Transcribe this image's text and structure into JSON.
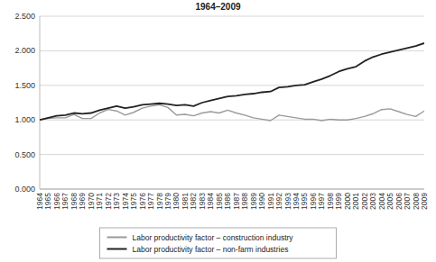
{
  "chart_data": {
    "type": "line",
    "title": "1964–2009",
    "categories": [
      "1964",
      "1965",
      "1966",
      "1967",
      "1968",
      "1969",
      "1970",
      "1971",
      "1972",
      "1973",
      "1974",
      "1975",
      "1976",
      "1977",
      "1978",
      "1979",
      "1980",
      "1981",
      "1982",
      "1983",
      "1984",
      "1985",
      "1986",
      "1987",
      "1988",
      "1989",
      "1990",
      "1991",
      "1992",
      "1993",
      "1994",
      "1995",
      "1996",
      "1997",
      "1998",
      "1999",
      "2000",
      "2001",
      "2002",
      "2003",
      "2004",
      "2005",
      "2006",
      "2007",
      "2008",
      "2009"
    ],
    "series": [
      {
        "name": "Labor productivity factor – construction industry",
        "color": "#9a9a9a",
        "values": [
          1.0,
          1.02,
          1.03,
          1.03,
          1.08,
          1.02,
          1.02,
          1.1,
          1.15,
          1.13,
          1.07,
          1.11,
          1.17,
          1.2,
          1.22,
          1.18,
          1.07,
          1.08,
          1.06,
          1.1,
          1.12,
          1.1,
          1.14,
          1.1,
          1.07,
          1.03,
          1.01,
          0.99,
          1.07,
          1.05,
          1.03,
          1.01,
          1.01,
          0.99,
          1.01,
          1.0,
          1.0,
          1.02,
          1.05,
          1.09,
          1.15,
          1.16,
          1.12,
          1.08,
          1.05,
          1.13
        ]
      },
      {
        "name": "Labor productivity factor – non-farm industries",
        "color": "#222222",
        "values": [
          1.0,
          1.03,
          1.06,
          1.07,
          1.1,
          1.09,
          1.1,
          1.14,
          1.17,
          1.2,
          1.17,
          1.19,
          1.22,
          1.23,
          1.24,
          1.23,
          1.21,
          1.22,
          1.2,
          1.25,
          1.28,
          1.31,
          1.34,
          1.35,
          1.37,
          1.38,
          1.4,
          1.41,
          1.47,
          1.48,
          1.5,
          1.51,
          1.55,
          1.59,
          1.64,
          1.7,
          1.74,
          1.77,
          1.85,
          1.91,
          1.95,
          1.98,
          2.01,
          2.04,
          2.07,
          2.11
        ]
      }
    ],
    "ylim": [
      0,
      2.5
    ],
    "yticks": [
      {
        "value": 0,
        "label": "0.000"
      },
      {
        "value": 0.5,
        "label": "0.500"
      },
      {
        "value": 1,
        "label": "1.000"
      },
      {
        "value": 1.5,
        "label": "1.500"
      },
      {
        "value": 2,
        "label": "2.000"
      },
      {
        "value": 2.5,
        "label": "2.500"
      }
    ],
    "grid": true,
    "legend": "bottom"
  }
}
